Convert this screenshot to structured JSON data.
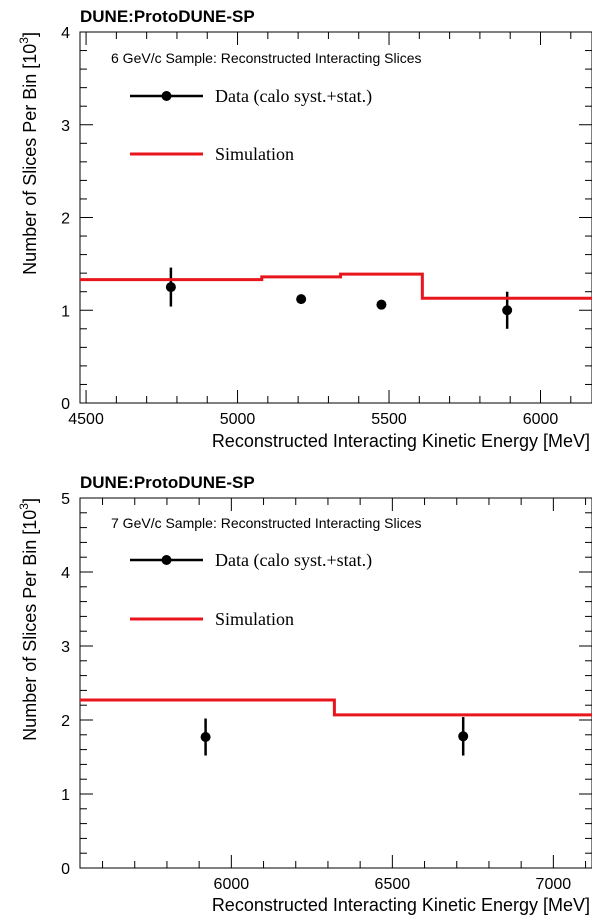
{
  "chart_data": [
    {
      "type": "step+errorbar",
      "title": "DUNE:ProtoDUNE-SP",
      "sample_label": "6 GeV/c Sample: Reconstructed Interacting Slices",
      "xlabel": "Reconstructed Interacting Kinetic Energy [MeV]",
      "ylabel": "Number of Slices Per Bin [10",
      "ylabel_exp": "3",
      "ylabel_close": "]",
      "xlim": [
        4480,
        6170
      ],
      "ylim": [
        0,
        4
      ],
      "x_ticks": [
        4500,
        5000,
        5500,
        6000
      ],
      "x_tick_labels": [
        "4500",
        "5000",
        "5500",
        "6000"
      ],
      "x_minor_step": 100,
      "y_ticks": [
        0,
        1,
        2,
        3,
        4
      ],
      "y_tick_labels": [
        "0",
        "1",
        "2",
        "3",
        "4"
      ],
      "y_minor_step": 0.2,
      "legend": [
        {
          "label": "Data (calo syst.+stat.)",
          "marker": "point-errorbar"
        },
        {
          "label": "Simulation",
          "marker": "line"
        }
      ],
      "series": [
        {
          "name": "Data (calo syst.+stat.)",
          "kind": "errorbar",
          "color": "#000000",
          "x": [
            4780,
            5210,
            5475,
            5890
          ],
          "y": [
            1.25,
            1.12,
            1.06,
            1.0
          ],
          "err": [
            0.21,
            0.04,
            0.04,
            0.2
          ]
        },
        {
          "name": "Simulation",
          "kind": "step",
          "color": "#e8161c",
          "edges": [
            4480,
            5080,
            5340,
            5610,
            6170
          ],
          "values": [
            1.33,
            1.36,
            1.39,
            1.13
          ]
        }
      ]
    },
    {
      "type": "step+errorbar",
      "title": "DUNE:ProtoDUNE-SP",
      "sample_label": "7 GeV/c Sample: Reconstructed Interacting Slices",
      "xlabel": "Reconstructed Interacting Kinetic Energy [MeV]",
      "ylabel": "Number of Slices Per Bin [10",
      "ylabel_exp": "3",
      "ylabel_close": "]",
      "xlim": [
        5530,
        7120
      ],
      "ylim": [
        0,
        5
      ],
      "x_ticks": [
        6000,
        6500,
        7000
      ],
      "x_tick_labels": [
        "6000",
        "6500",
        "7000"
      ],
      "x_minor_step": 100,
      "y_ticks": [
        0,
        1,
        2,
        3,
        4,
        5
      ],
      "y_tick_labels": [
        "0",
        "1",
        "2",
        "3",
        "4",
        "5"
      ],
      "y_minor_step": 0.2,
      "legend": [
        {
          "label": "Data (calo syst.+stat.)",
          "marker": "point-errorbar"
        },
        {
          "label": "Simulation",
          "marker": "line"
        }
      ],
      "series": [
        {
          "name": "Data (calo syst.+stat.)",
          "kind": "errorbar",
          "color": "#000000",
          "x": [
            5920,
            6720
          ],
          "y": [
            1.77,
            1.78
          ],
          "err": [
            0.25,
            0.26
          ]
        },
        {
          "name": "Simulation",
          "kind": "step",
          "color": "#e8161c",
          "edges": [
            5530,
            6320,
            7120
          ],
          "values": [
            2.27,
            2.07
          ]
        }
      ]
    }
  ]
}
